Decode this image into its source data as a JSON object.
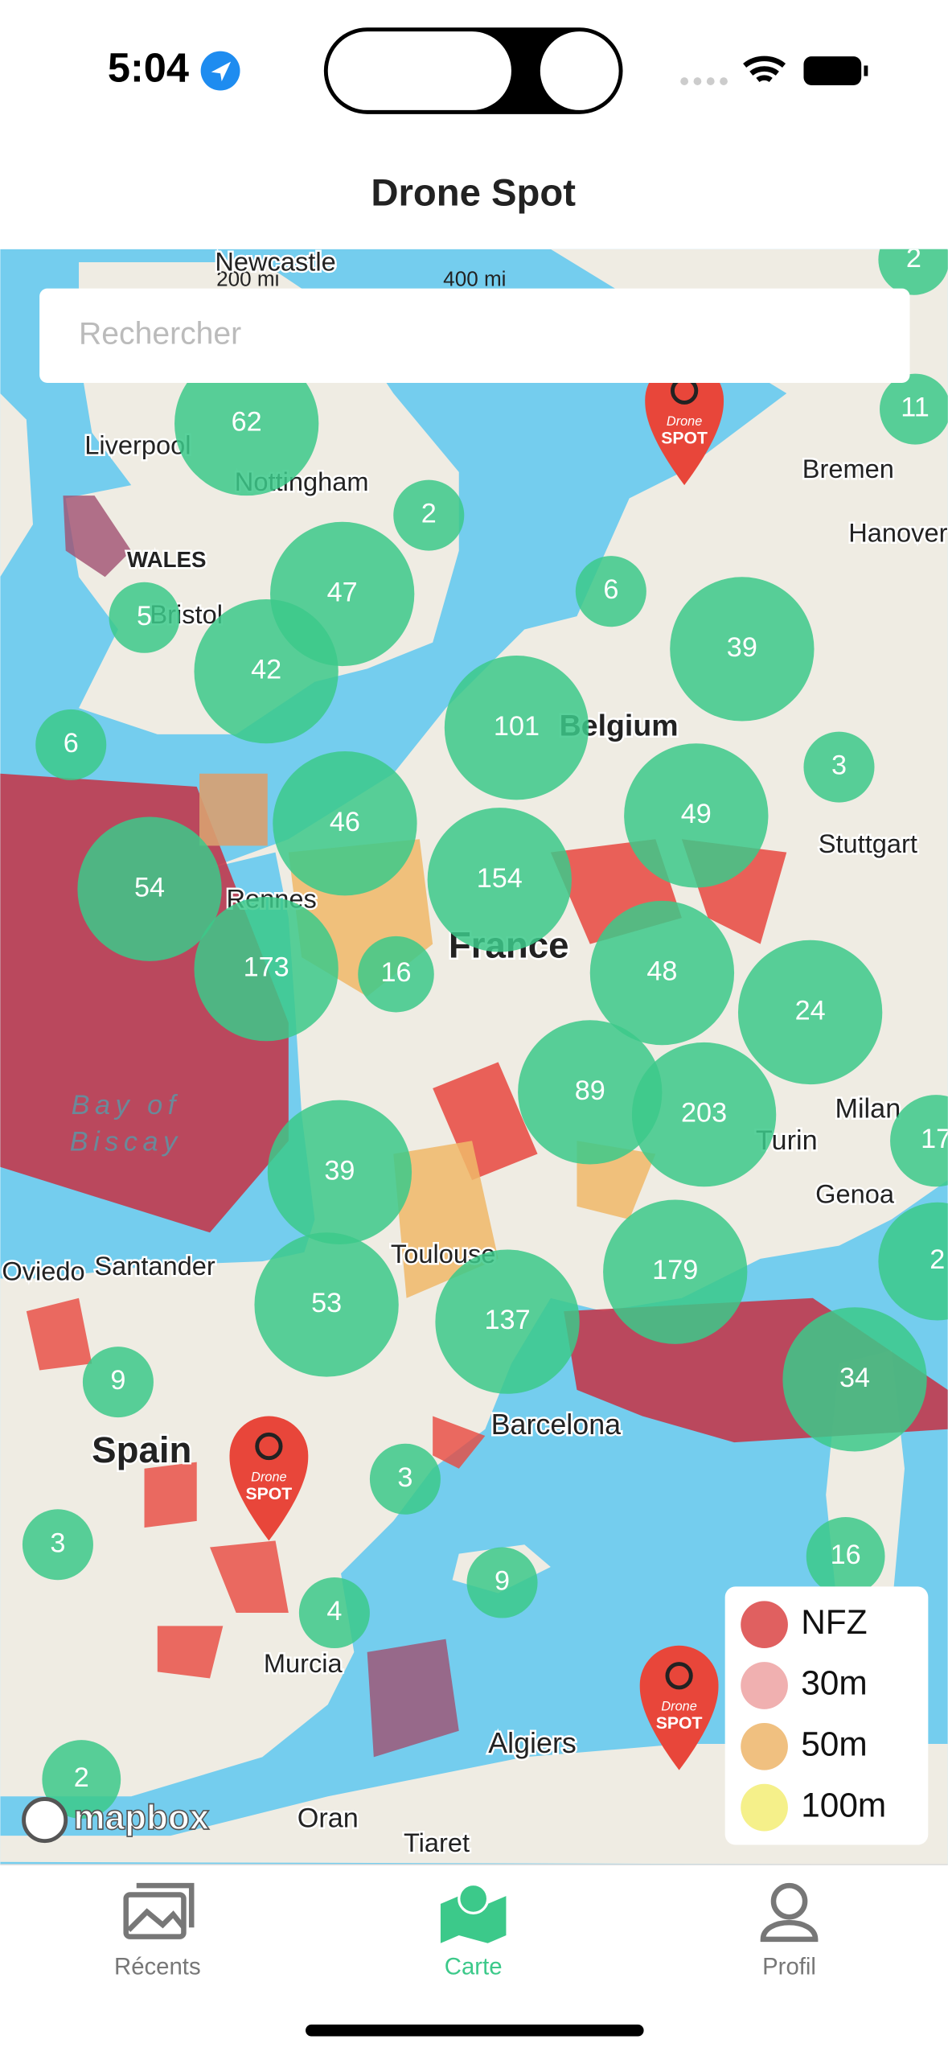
{
  "status": {
    "time": "5:04"
  },
  "header": {
    "title": "Drone Spot"
  },
  "search": {
    "placeholder": "Rechercher"
  },
  "map": {
    "scale": [
      "200 mi",
      "400 mi"
    ],
    "labels": [
      "Newcastle",
      "Liverpool",
      "Nottingham",
      "WALES",
      "Bristol",
      "Bremen",
      "Hanover",
      "Belgium",
      "Stuttgart",
      "Rennes",
      "France",
      "Bay of",
      "Biscay",
      "Milan",
      "Turin",
      "Genoa",
      "Toulouse",
      "Oviedo",
      "Santander",
      "Spain",
      "Barcelona",
      "Murcia",
      "Algiers",
      "Oran",
      "Tiaret"
    ],
    "clusters": [
      62,
      2,
      47,
      5,
      42,
      6,
      39,
      6,
      101,
      3,
      46,
      49,
      54,
      154,
      173,
      16,
      48,
      24,
      89,
      203,
      17,
      39,
      53,
      137,
      179,
      2,
      34,
      9,
      3,
      3,
      4,
      9,
      16,
      2,
      2,
      11
    ],
    "pin_label": [
      "Drone",
      "SPOT"
    ],
    "attribution": "mapbox"
  },
  "legend": [
    "NFZ",
    "30m",
    "50m",
    "100m"
  ],
  "tabs": [
    "Récents",
    "Carte",
    "Profil"
  ]
}
